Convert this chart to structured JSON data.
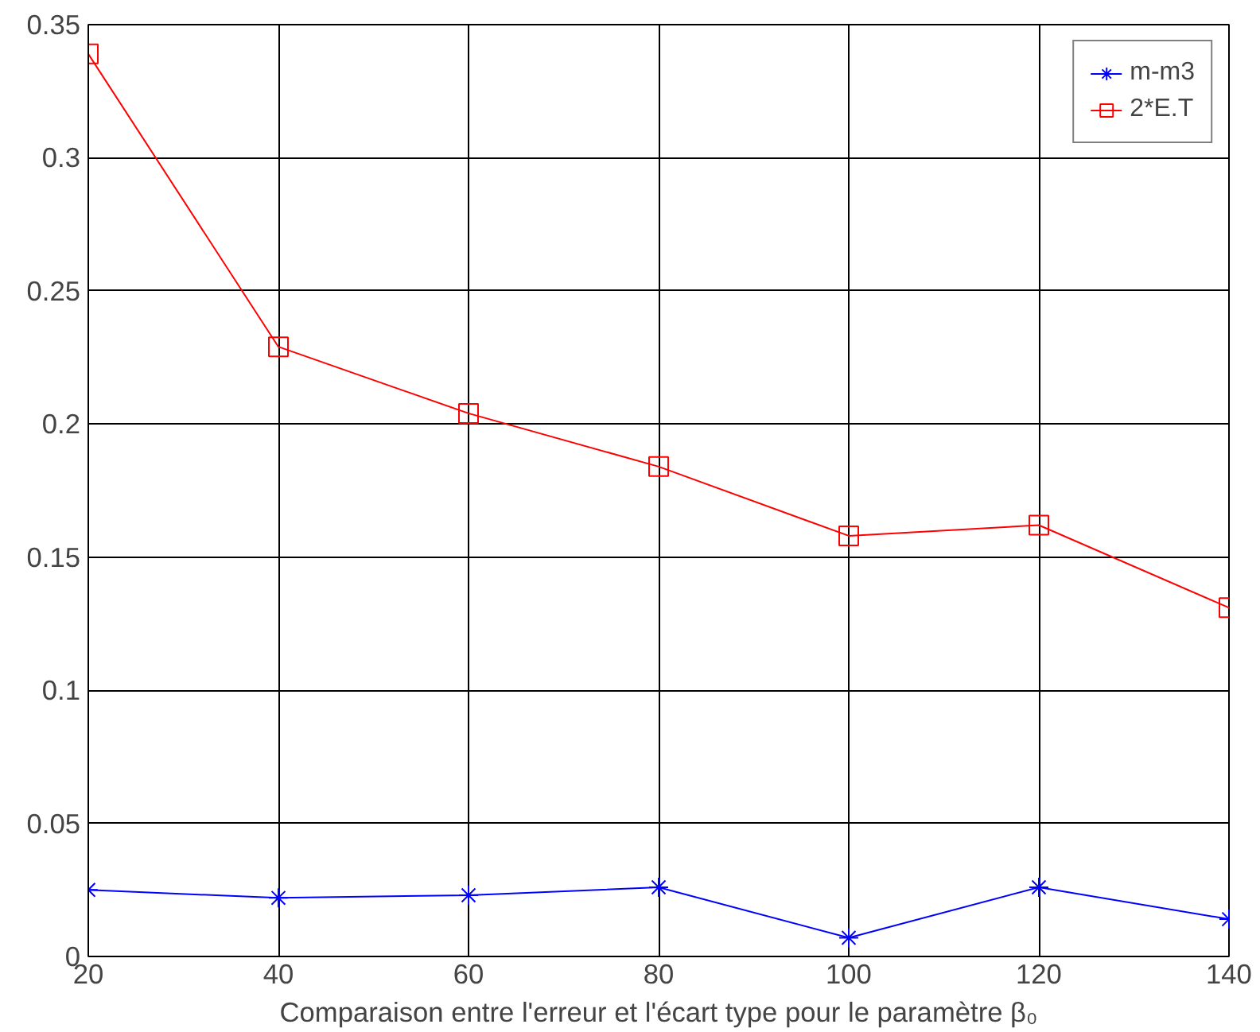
{
  "chart_data": {
    "type": "line",
    "xlabel": "Comparaison entre l'erreur et l'écart type pour le paramètre β₀",
    "x": [
      20,
      40,
      60,
      80,
      100,
      120,
      140
    ],
    "series": [
      {
        "name": "m-m3",
        "color": "#0000ff",
        "marker": "cross",
        "values": [
          0.025,
          0.022,
          0.023,
          0.026,
          0.007,
          0.026,
          0.014
        ]
      },
      {
        "name": "2*E.T",
        "color": "#ff0000",
        "marker": "square",
        "values": [
          0.339,
          0.229,
          0.204,
          0.184,
          0.158,
          0.162,
          0.131
        ]
      }
    ],
    "xlim": [
      20,
      140
    ],
    "ylim": [
      0,
      0.35
    ],
    "xticks": [
      20,
      40,
      60,
      80,
      100,
      120,
      140
    ],
    "yticks": [
      0,
      0.05,
      0.1,
      0.15,
      0.2,
      0.25,
      0.3,
      0.35
    ],
    "grid": true,
    "legend": "top right",
    "line_style": "solid"
  }
}
